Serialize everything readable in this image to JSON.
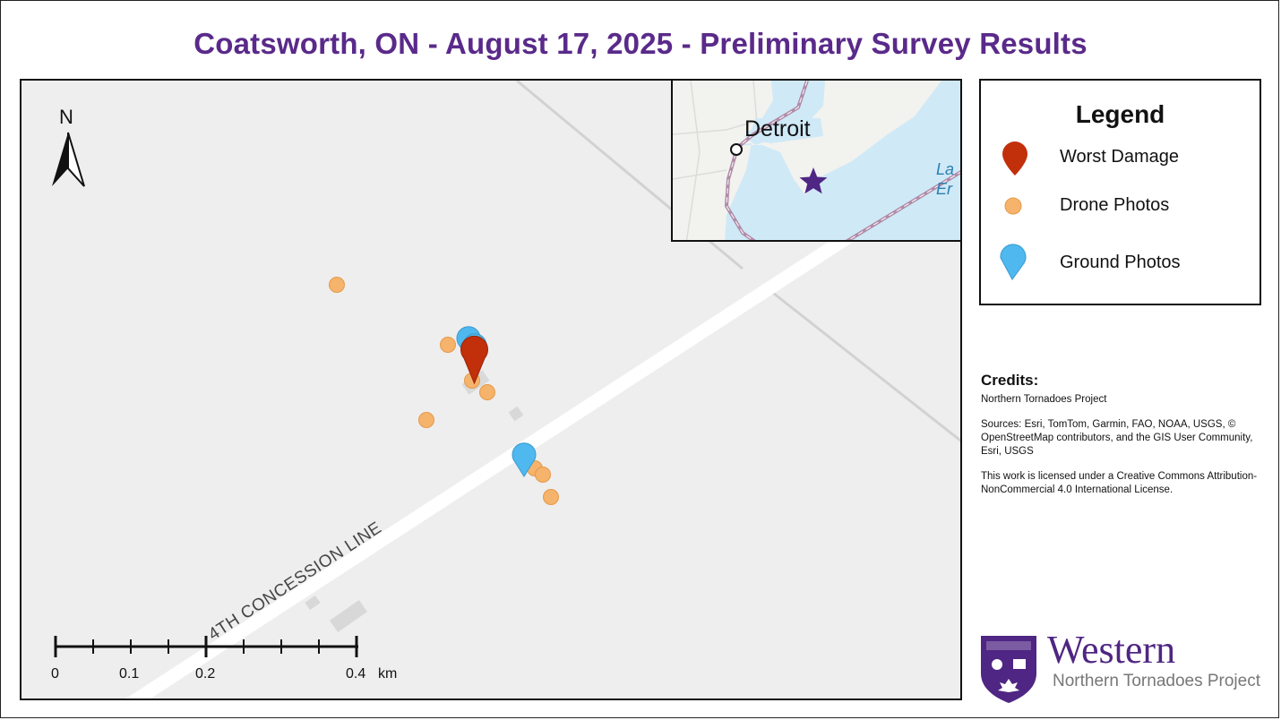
{
  "title": "Coatsworth, ON - August 17, 2025 - Preliminary Survey Results",
  "map": {
    "road_label": "4TH CONCESSION LINE",
    "north_label": "N",
    "scale": {
      "labels": [
        "0",
        "0.1",
        "0.2",
        "0.4"
      ],
      "unit": "km"
    },
    "markers": {
      "worst_damage": {
        "color": "#c1300b"
      },
      "drone_photos": {
        "color": "#f5b36b"
      },
      "ground_photos": {
        "color": "#4fb8ee"
      }
    }
  },
  "inset": {
    "city_label": "Detroit",
    "lake_label_line1": "La",
    "lake_label_line2": "Er",
    "star_color": "#4f2683"
  },
  "legend": {
    "title": "Legend",
    "items": [
      {
        "label": "Worst Damage",
        "icon": "red-map-pin"
      },
      {
        "label": "Drone Photos",
        "icon": "orange-dot"
      },
      {
        "label": "Ground Photos",
        "icon": "blue-map-pin"
      }
    ]
  },
  "credits": {
    "heading": "Credits:",
    "line1": "Northern Tornadoes Project",
    "sources": "Sources: Esri, TomTom, Garmin, FAO, NOAA, USGS, © OpenStreetMap contributors, and the GIS User Community, Esri, USGS",
    "license": "This work is licensed under a Creative Commons Attribution-NonCommercial 4.0 International License."
  },
  "logo": {
    "name": "Western",
    "subtitle": "Northern Tornadoes Project"
  },
  "colors": {
    "title": "#5a2a8a",
    "brand_purple": "#4f2683",
    "map_background": "#eeeeee",
    "water": "#cfe9f7"
  }
}
